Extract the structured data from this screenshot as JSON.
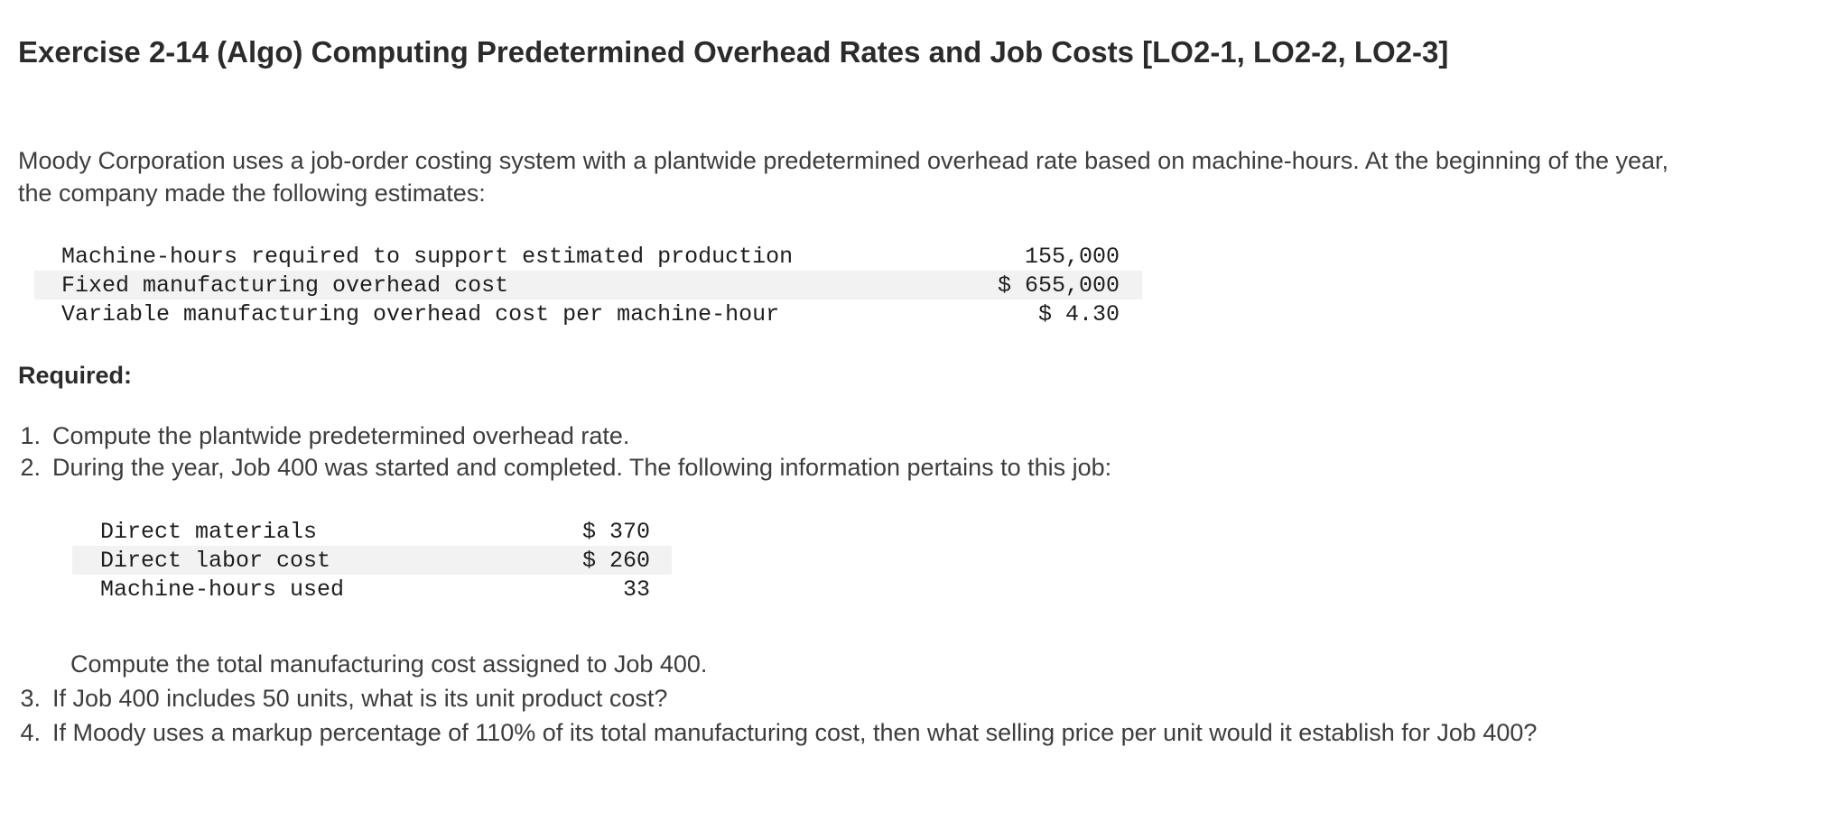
{
  "title": "Exercise 2-14 (Algo) Computing Predetermined Overhead Rates and Job Costs [LO2-1, LO2-2, LO2-3]",
  "intro": "Moody Corporation uses a job-order costing system with a plantwide predetermined overhead rate based on machine-hours. At the beginning of the year, the company made the following estimates:",
  "estimates_table": {
    "rows": [
      {
        "label": "Machine-hours required to support estimated production",
        "value": "155,000"
      },
      {
        "label": "Fixed manufacturing overhead cost",
        "value": "$ 655,000"
      },
      {
        "label": "Variable manufacturing overhead cost per machine-hour",
        "value": "$ 4.30"
      }
    ]
  },
  "required_label": "Required:",
  "requirements_top": [
    {
      "number": "1.",
      "text": "Compute the plantwide predetermined overhead rate."
    },
    {
      "number": "2.",
      "text": "During the year, Job 400 was started and completed. The following information pertains to this job:"
    }
  ],
  "job_table": {
    "rows": [
      {
        "label": "Direct materials",
        "value": "$ 370"
      },
      {
        "label": "Direct labor cost",
        "value": "$ 260"
      },
      {
        "label": "Machine-hours used",
        "value": "33"
      }
    ]
  },
  "job_note": "Compute the total manufacturing cost assigned to Job 400.",
  "requirements_bottom": [
    {
      "number": "3.",
      "text": "If Job 400 includes 50 units, what is its unit product cost?"
    },
    {
      "number": "4.",
      "text": "If Moody uses a markup percentage of 110% of its total manufacturing cost, then what selling price per unit would it establish for Job 400?"
    }
  ],
  "colors": {
    "title_text": "#2b2b2b",
    "body_text": "#3d3d3d",
    "mono_text": "#1e1e1e",
    "row_shade": "#f2f2f2",
    "background": "#ffffff"
  }
}
